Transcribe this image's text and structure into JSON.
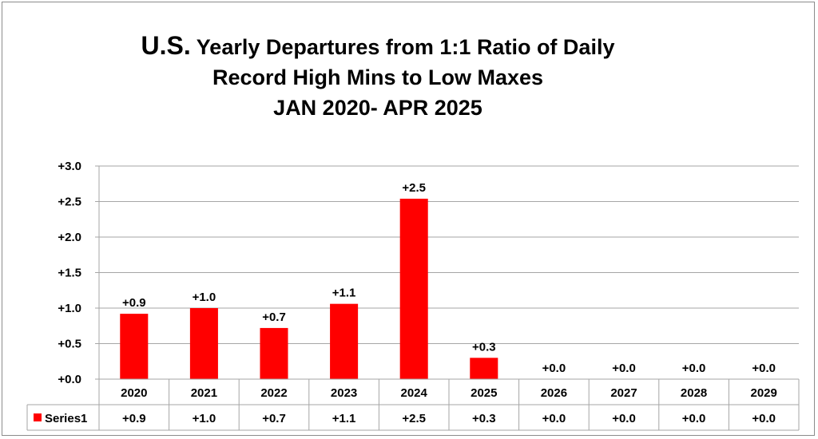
{
  "chart_data": {
    "type": "bar",
    "title": {
      "line1_prefix": "U.S.",
      "line1_rest": " Yearly Departures from 1:1 Ratio of Daily",
      "line2": "Record High Mins to Low Maxes",
      "line3": "JAN 2020- APR 2025"
    },
    "categories": [
      "2020",
      "2021",
      "2022",
      "2023",
      "2024",
      "2025",
      "2026",
      "2027",
      "2028",
      "2029"
    ],
    "series": [
      {
        "name": "Series1",
        "color": "#ff0000",
        "values": [
          0.92,
          1.0,
          0.72,
          1.06,
          2.54,
          0.3,
          0.0,
          0.0,
          0.0,
          0.0
        ],
        "labels": [
          "+0.9",
          "+1.0",
          "+0.7",
          "+1.1",
          "+2.5",
          "+0.3",
          "+0.0",
          "+0.0",
          "+0.0",
          "+0.0"
        ]
      }
    ],
    "y_ticks": [
      "+0.0",
      "+0.5",
      "+1.0",
      "+1.5",
      "+2.0",
      "+2.5",
      "+3.0"
    ],
    "ylim": [
      0,
      3.0
    ],
    "ytick_step": 0.5,
    "grid": true,
    "data_table": true,
    "legend_placement": "data-table-row-header",
    "gridline_color": "#a6a6a6",
    "text_color": "#000000"
  }
}
